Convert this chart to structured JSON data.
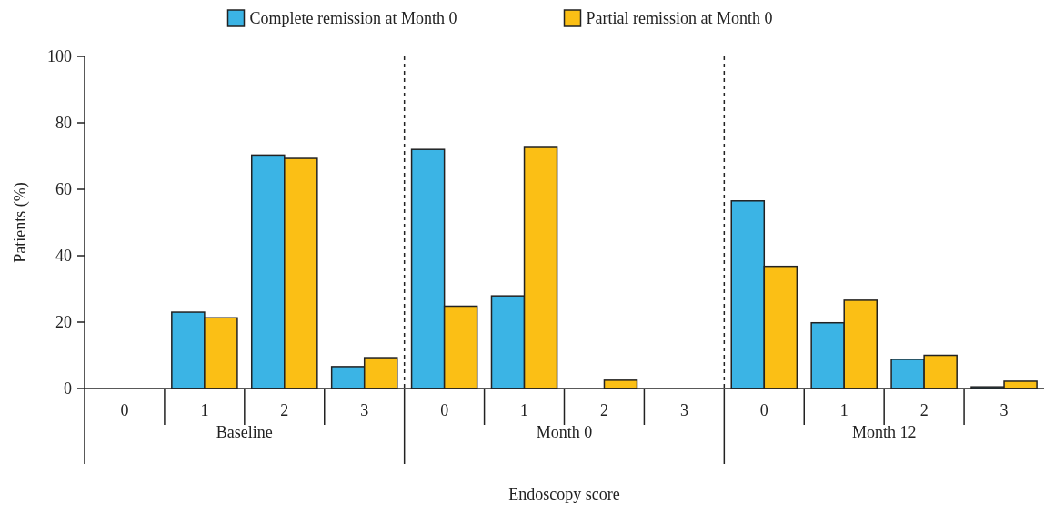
{
  "chart_data": {
    "type": "bar",
    "xlabel": "Endoscopy score",
    "ylabel": "Patients (%)",
    "categories": [
      "0",
      "1",
      "2",
      "3",
      "0",
      "1",
      "2",
      "3",
      "0",
      "1",
      "2",
      "3"
    ],
    "series": [
      {
        "name": "Complete remission at Month 0",
        "color": "#3bb4e5",
        "values": [
          0,
          23,
          70.3,
          6.6,
          72,
          27.9,
          0,
          0,
          56.5,
          19.8,
          8.8,
          0.5
        ]
      },
      {
        "name": "Partial remission at Month 0",
        "color": "#fbbf15",
        "values": [
          0,
          21.3,
          69.3,
          9.3,
          24.8,
          72.6,
          2.5,
          0,
          36.8,
          26.6,
          10,
          2.2
        ]
      }
    ],
    "annotations": [
      "Baseline",
      "Month 0",
      "Month 12"
    ],
    "ylim": [
      0,
      100
    ],
    "yticks": [
      0,
      20,
      40,
      60,
      80,
      100
    ],
    "grid": false,
    "legend": "top"
  }
}
